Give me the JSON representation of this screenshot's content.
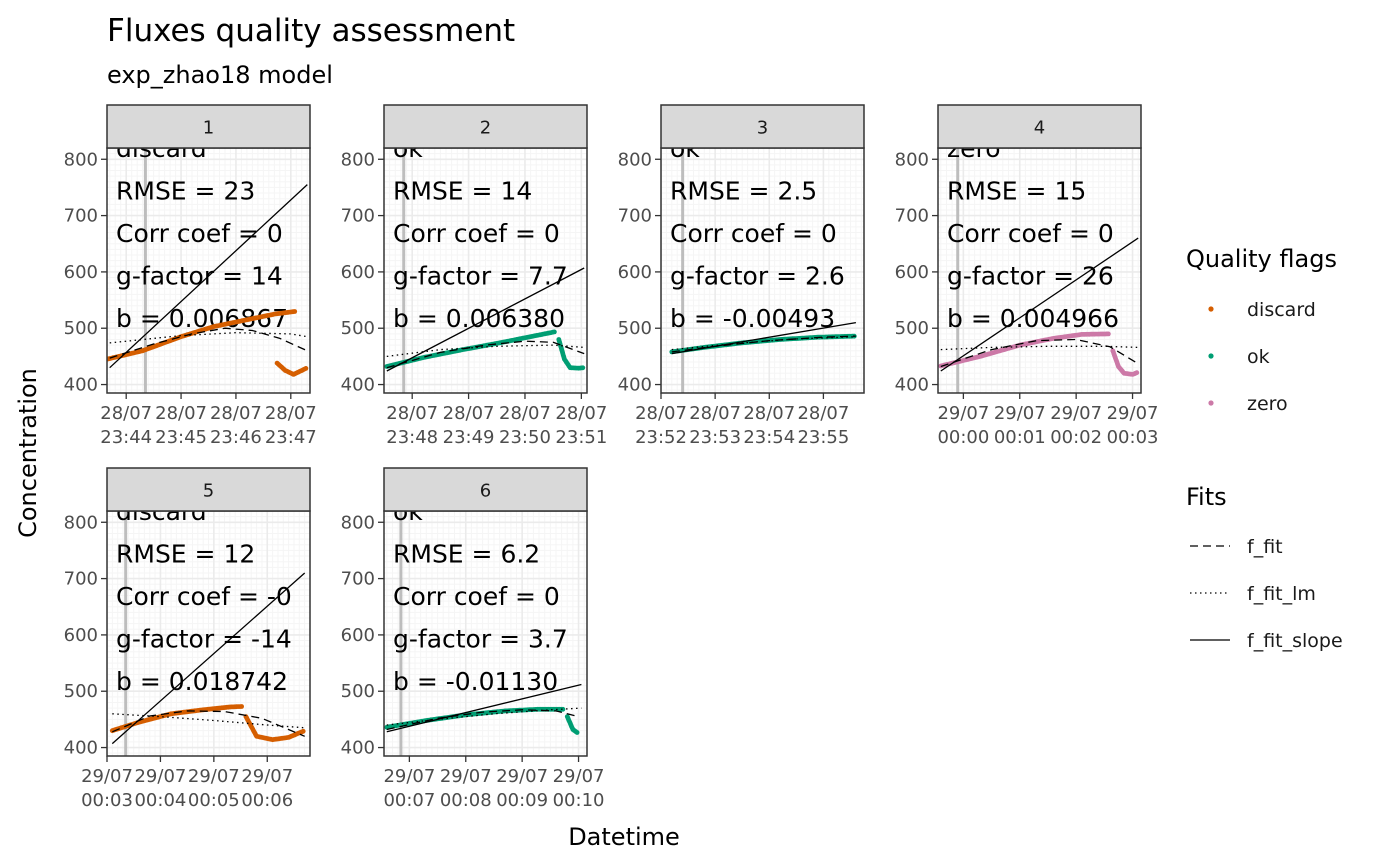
{
  "chart_data": {
    "type": "scatter",
    "title": "Fluxes quality assessment",
    "subtitle": "exp_zhao18 model",
    "xlabel": "Datetime",
    "ylabel": "Concentration",
    "ylim": [
      385,
      820
    ],
    "y_ticks": [
      400,
      500,
      600,
      700,
      800
    ],
    "grid": true,
    "legend_placement": "right",
    "colors": {
      "discard": "#D55E00",
      "ok": "#009E73",
      "zero": "#CC79A7",
      "strip_fill": "#D9D9D9",
      "panel_border": "#333333",
      "grid_major": "#EBEBEB",
      "grid_minor": "#F5F5F5"
    },
    "legends": {
      "quality": {
        "title": "Quality flags",
        "items": [
          {
            "label": "discard",
            "color": "#D55E00"
          },
          {
            "label": "ok",
            "color": "#009E73"
          },
          {
            "label": "zero",
            "color": "#CC79A7"
          }
        ]
      },
      "fits": {
        "title": "Fits",
        "items": [
          {
            "label": "f_fit",
            "dash": "dashed"
          },
          {
            "label": "f_fit_lm",
            "dash": "dotted"
          },
          {
            "label": "f_fit_slope",
            "dash": "solid"
          }
        ]
      }
    },
    "facets": [
      {
        "id": "1",
        "flag": "discard",
        "x_domain": [
          -0.35,
          3.35
        ],
        "x_ticks": [
          0,
          1,
          2,
          3
        ],
        "x_labels": [
          [
            "28/07",
            "23:44"
          ],
          [
            "28/07",
            "23:45"
          ],
          [
            "28/07",
            "23:46"
          ],
          [
            "28/07",
            "23:47"
          ]
        ],
        "start_x": 0.35,
        "annotations": [
          "discard",
          "RMSE = 23",
          "Corr coef = 0",
          "g-factor = 14",
          "b = 0.006867"
        ],
        "points": [
          [
            -0.35,
            445
          ],
          [
            0.3,
            460
          ],
          [
            1.0,
            485
          ],
          [
            1.6,
            503
          ],
          [
            2.2,
            515
          ],
          [
            2.7,
            525
          ],
          [
            3.1,
            530
          ]
        ],
        "points2": [
          [
            2.75,
            438
          ],
          [
            2.9,
            425
          ],
          [
            3.05,
            418
          ],
          [
            3.2,
            425
          ],
          [
            3.3,
            430
          ]
        ],
        "fit": [
          [
            -0.3,
            447
          ],
          [
            0.5,
            472
          ],
          [
            1.2,
            490
          ],
          [
            1.8,
            500
          ],
          [
            2.3,
            496
          ],
          [
            2.8,
            482
          ],
          [
            3.3,
            460
          ]
        ],
        "lm": [
          [
            -0.3,
            474
          ],
          [
            1.0,
            487
          ],
          [
            2.0,
            492
          ],
          [
            3.0,
            490
          ],
          [
            3.3,
            485
          ]
        ],
        "slope": [
          [
            -0.3,
            430
          ],
          [
            3.3,
            755
          ]
        ]
      },
      {
        "id": "2",
        "flag": "ok",
        "x_domain": [
          -0.5,
          3.1
        ],
        "x_ticks": [
          0,
          1,
          2,
          3
        ],
        "x_labels": [
          [
            "28/07",
            "23:48"
          ],
          [
            "28/07",
            "23:49"
          ],
          [
            "28/07",
            "23:50"
          ],
          [
            "28/07",
            "23:51"
          ]
        ],
        "start_x": -0.15,
        "annotations": [
          "ok",
          "RMSE = 14",
          "Corr coef = 0",
          "g-factor = 7.7",
          "b = 0.006380"
        ],
        "points": [
          [
            -0.45,
            432
          ],
          [
            0.2,
            448
          ],
          [
            0.9,
            462
          ],
          [
            1.5,
            473
          ],
          [
            2.1,
            485
          ],
          [
            2.55,
            494
          ]
        ],
        "points2": [
          [
            2.6,
            480
          ],
          [
            2.7,
            445
          ],
          [
            2.8,
            430
          ],
          [
            2.95,
            429
          ],
          [
            3.05,
            430
          ]
        ],
        "fit": [
          [
            -0.45,
            430
          ],
          [
            0.5,
            457
          ],
          [
            1.3,
            470
          ],
          [
            2.0,
            477
          ],
          [
            2.5,
            475
          ],
          [
            3.05,
            455
          ]
        ],
        "lm": [
          [
            -0.45,
            450
          ],
          [
            0.5,
            462
          ],
          [
            1.5,
            468
          ],
          [
            2.5,
            470
          ],
          [
            3.05,
            466
          ]
        ],
        "slope": [
          [
            -0.45,
            424
          ],
          [
            3.05,
            607
          ]
        ]
      },
      {
        "id": "3",
        "flag": "ok",
        "x_domain": [
          0,
          3.75
        ],
        "x_ticks": [
          0,
          1,
          2,
          3
        ],
        "x_labels": [
          [
            "28/07",
            "23:52"
          ],
          [
            "28/07",
            "23:53"
          ],
          [
            "28/07",
            "23:54"
          ],
          [
            "28/07",
            "23:55"
          ]
        ],
        "start_x": 0.4,
        "annotations": [
          "ok",
          "RMSE = 2.5",
          "Corr coef = 0",
          "g-factor = 2.6",
          "b = -0.00493"
        ],
        "points": [
          [
            0.2,
            458
          ],
          [
            0.8,
            466
          ],
          [
            1.5,
            474
          ],
          [
            2.2,
            480
          ],
          [
            2.9,
            484
          ],
          [
            3.6,
            486
          ]
        ],
        "points2": [],
        "fit": [
          [
            0.2,
            458
          ],
          [
            1.0,
            468
          ],
          [
            2.0,
            478
          ],
          [
            3.0,
            484
          ],
          [
            3.6,
            486
          ]
        ],
        "lm": [
          [
            0.2,
            462
          ],
          [
            1.5,
            474
          ],
          [
            2.5,
            481
          ],
          [
            3.6,
            485
          ]
        ],
        "slope": [
          [
            0.2,
            455
          ],
          [
            3.6,
            510
          ]
        ]
      },
      {
        "id": "4",
        "flag": "zero",
        "x_domain": [
          -0.45,
          3.15
        ],
        "x_ticks": [
          0,
          1,
          2,
          3
        ],
        "x_labels": [
          [
            "29/07",
            "00:00"
          ],
          [
            "29/07",
            "00:01"
          ],
          [
            "29/07",
            "00:02"
          ],
          [
            "29/07",
            "00:03"
          ]
        ],
        "start_x": -0.1,
        "annotations": [
          "zero",
          "RMSE = 15",
          "Corr coef = 0",
          "g-factor = 26",
          "b = 0.004966"
        ],
        "points": [
          [
            -0.4,
            433
          ],
          [
            0.3,
            450
          ],
          [
            1.0,
            470
          ],
          [
            1.6,
            482
          ],
          [
            2.1,
            489
          ],
          [
            2.6,
            490
          ]
        ],
        "points2": [
          [
            2.65,
            460
          ],
          [
            2.75,
            432
          ],
          [
            2.85,
            420
          ],
          [
            3.0,
            418
          ],
          [
            3.1,
            422
          ]
        ],
        "fit": [
          [
            -0.4,
            432
          ],
          [
            0.5,
            462
          ],
          [
            1.3,
            478
          ],
          [
            2.0,
            480
          ],
          [
            2.6,
            467
          ],
          [
            3.1,
            437
          ]
        ],
        "lm": [
          [
            -0.4,
            462
          ],
          [
            0.5,
            466
          ],
          [
            1.5,
            468
          ],
          [
            2.5,
            468
          ],
          [
            3.1,
            466
          ]
        ],
        "slope": [
          [
            -0.4,
            424
          ],
          [
            3.1,
            660
          ]
        ]
      },
      {
        "id": "5",
        "flag": "discard",
        "x_domain": [
          0,
          3.8
        ],
        "x_ticks": [
          0,
          1,
          2,
          3
        ],
        "x_labels": [
          [
            "29/07",
            "00:03"
          ],
          [
            "29/07",
            "00:04"
          ],
          [
            "29/07",
            "00:05"
          ],
          [
            "29/07",
            "00:06"
          ]
        ],
        "start_x": 0.35,
        "annotations": [
          "discard",
          "RMSE = 12",
          "Corr coef = -0",
          "g-factor = -14",
          "b = 0.018742"
        ],
        "points": [
          [
            0.1,
            430
          ],
          [
            0.6,
            445
          ],
          [
            1.2,
            460
          ],
          [
            1.8,
            467
          ],
          [
            2.3,
            472
          ],
          [
            2.55,
            473
          ]
        ],
        "points2": [
          [
            2.6,
            455
          ],
          [
            2.8,
            420
          ],
          [
            3.1,
            414
          ],
          [
            3.4,
            418
          ],
          [
            3.7,
            430
          ]
        ],
        "fit": [
          [
            0.1,
            428
          ],
          [
            0.8,
            456
          ],
          [
            1.5,
            465
          ],
          [
            2.2,
            464
          ],
          [
            2.9,
            452
          ],
          [
            3.7,
            420
          ]
        ],
        "lm": [
          [
            0.1,
            460
          ],
          [
            1.0,
            455
          ],
          [
            2.0,
            448
          ],
          [
            3.0,
            440
          ],
          [
            3.7,
            435
          ]
        ],
        "slope": [
          [
            0.1,
            407
          ],
          [
            3.7,
            710
          ]
        ]
      },
      {
        "id": "6",
        "flag": "ok",
        "x_domain": [
          -0.45,
          3.15
        ],
        "x_ticks": [
          0,
          1,
          2,
          3
        ],
        "x_labels": [
          [
            "29/07",
            "00:07"
          ],
          [
            "29/07",
            "00:08"
          ],
          [
            "29/07",
            "00:09"
          ],
          [
            "29/07",
            "00:10"
          ]
        ],
        "start_x": -0.15,
        "annotations": [
          "ok",
          "RMSE = 6.2",
          "Corr coef = 0",
          "g-factor = 3.7",
          "b = -0.01130"
        ],
        "points": [
          [
            -0.4,
            436
          ],
          [
            0.3,
            448
          ],
          [
            1.0,
            458
          ],
          [
            1.7,
            465
          ],
          [
            2.3,
            468
          ],
          [
            2.75,
            468
          ]
        ],
        "points2": [
          [
            2.8,
            455
          ],
          [
            2.9,
            432
          ],
          [
            3.0,
            425
          ]
        ],
        "fit": [
          [
            -0.4,
            432
          ],
          [
            0.5,
            452
          ],
          [
            1.3,
            463
          ],
          [
            2.0,
            467
          ],
          [
            2.6,
            465
          ],
          [
            3.0,
            455
          ]
        ],
        "lm": [
          [
            -0.4,
            440
          ],
          [
            0.5,
            450
          ],
          [
            1.5,
            460
          ],
          [
            2.5,
            467
          ],
          [
            3.05,
            470
          ]
        ],
        "slope": [
          [
            -0.4,
            428
          ],
          [
            3.05,
            512
          ]
        ]
      }
    ]
  }
}
